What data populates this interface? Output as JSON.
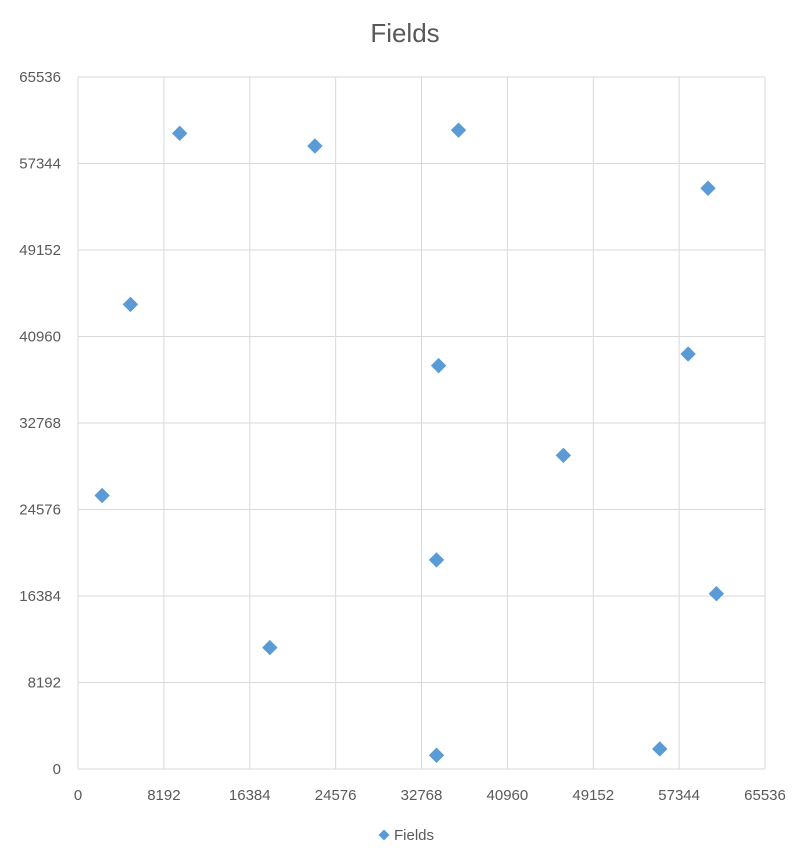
{
  "chart_data": {
    "type": "scatter",
    "title": "Fields",
    "xlabel": "",
    "ylabel": "",
    "xlim": [
      0,
      65536
    ],
    "ylim": [
      0,
      65536
    ],
    "x_ticks": [
      "0",
      "8192",
      "16384",
      "24576",
      "32768",
      "40960",
      "49152",
      "57344",
      "65536"
    ],
    "y_ticks": [
      "0",
      "8192",
      "16384",
      "24576",
      "32768",
      "40960",
      "49152",
      "57344",
      "65536"
    ],
    "grid": true,
    "legend": {
      "position": "bottom",
      "entries": [
        "Fields"
      ]
    },
    "series": [
      {
        "name": "Fields",
        "color": "#5B9BD5",
        "marker": "diamond",
        "points": [
          {
            "x": 2300,
            "y": 25900
          },
          {
            "x": 5000,
            "y": 44000
          },
          {
            "x": 9700,
            "y": 60200
          },
          {
            "x": 18300,
            "y": 11500
          },
          {
            "x": 22600,
            "y": 59000
          },
          {
            "x": 34200,
            "y": 19800
          },
          {
            "x": 34400,
            "y": 38200
          },
          {
            "x": 34200,
            "y": 1300
          },
          {
            "x": 36300,
            "y": 60500
          },
          {
            "x": 46300,
            "y": 29700
          },
          {
            "x": 55500,
            "y": 1900
          },
          {
            "x": 58200,
            "y": 39300
          },
          {
            "x": 60100,
            "y": 55000
          },
          {
            "x": 60900,
            "y": 16600
          }
        ]
      }
    ]
  }
}
